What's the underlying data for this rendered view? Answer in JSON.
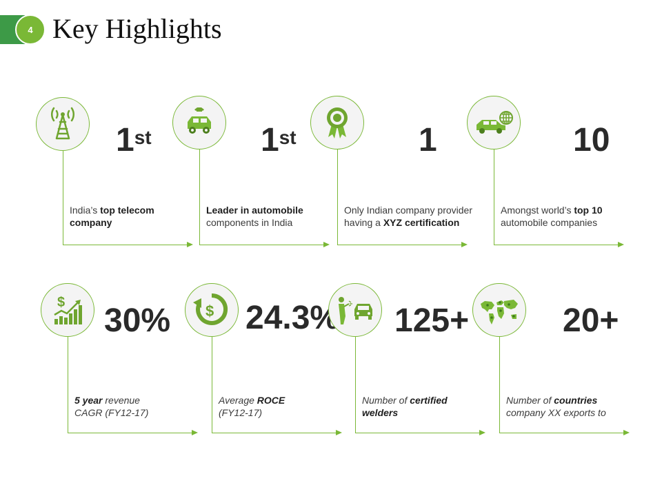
{
  "header": {
    "number": "4",
    "title": "Key Highlights"
  },
  "highlights": [
    {
      "icon": "telecom-tower-icon",
      "stat": "1",
      "stat_sup": "st",
      "desc_line1": {
        "pre": "India’s ",
        "bold": "top telecom",
        "post": ""
      },
      "desc_line2": {
        "pre": "",
        "bold": "company",
        "post": ""
      }
    },
    {
      "icon": "car-wrench-icon",
      "stat": "1",
      "stat_sup": "st",
      "desc_line1": {
        "pre": "",
        "bold": "Leader in automobile",
        "post": ""
      },
      "desc_line2": {
        "pre": "components in India",
        "bold": "",
        "post": ""
      }
    },
    {
      "icon": "award-ribbon-icon",
      "stat": "1",
      "stat_sup": "",
      "desc_line1": {
        "pre": "Only Indian company provider",
        "bold": "",
        "post": ""
      },
      "desc_line2": {
        "pre": "having a ",
        "bold": "XYZ certification",
        "post": ""
      }
    },
    {
      "icon": "car-globe-icon",
      "stat": "10",
      "stat_sup": "",
      "desc_line1": {
        "pre": "Amongst world’s ",
        "bold": "top 10",
        "post": ""
      },
      "desc_line2": {
        "pre": "automobile companies",
        "bold": "",
        "post": ""
      }
    },
    {
      "icon": "dollar-growth-chart-icon",
      "stat": "30%",
      "stat_sup": "",
      "desc_line1": {
        "pre": "",
        "bold": "5 year",
        "post": " revenue"
      },
      "desc_line2": {
        "pre": "CAGR (FY12-17)",
        "bold": "",
        "post": ""
      }
    },
    {
      "icon": "dollar-return-icon",
      "stat": "24.3%",
      "stat_sup": "",
      "desc_line1": {
        "pre": "Average ",
        "bold": "ROCE",
        "post": ""
      },
      "desc_line2": {
        "pre": "(FY12-17)",
        "bold": "",
        "post": ""
      }
    },
    {
      "icon": "welder-car-icon",
      "stat": "125+",
      "stat_sup": "",
      "desc_line1": {
        "pre": "Number of ",
        "bold": "certified",
        "post": ""
      },
      "desc_line2": {
        "pre": "",
        "bold": "welders",
        "post": ""
      }
    },
    {
      "icon": "world-map-icon",
      "stat": "20+",
      "stat_sup": "",
      "desc_line1": {
        "pre": "Number of ",
        "bold": "countries",
        "post": ""
      },
      "desc_line2": {
        "pre": "company XX exports to",
        "bold": "",
        "post": ""
      }
    }
  ],
  "colors": {
    "accent": "#7ab836",
    "dark_green": "#3d9a47",
    "stat_text": "#2a2a2a"
  }
}
